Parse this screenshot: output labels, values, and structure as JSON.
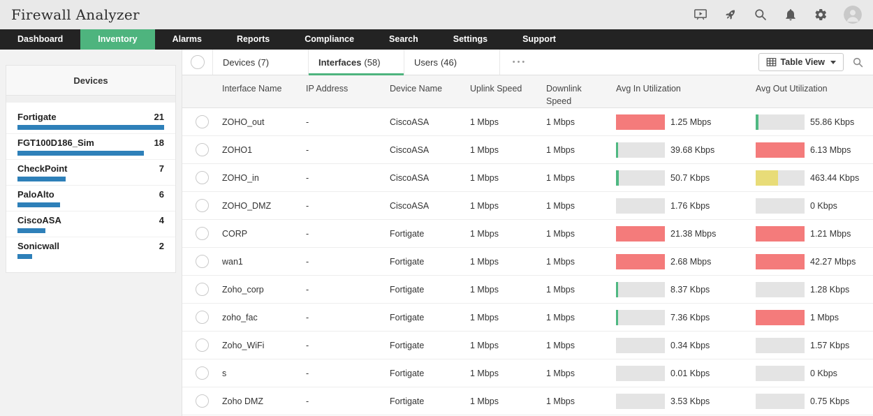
{
  "colors": {
    "accent_green": "#4eb47e",
    "bar_blue": "#2e80b9",
    "util_red": "#f47b7b",
    "util_yellow": "#e8dc78",
    "util_green": "#4fb882",
    "util_track": "#e4e4e4"
  },
  "header": {
    "title": "Firewall Analyzer",
    "icons": [
      "presentation-icon",
      "rocket-icon",
      "search-icon",
      "bell-icon",
      "gear-icon",
      "avatar"
    ]
  },
  "nav": {
    "items": [
      {
        "label": "Dashboard",
        "active": false
      },
      {
        "label": "Inventory",
        "active": true
      },
      {
        "label": "Alarms",
        "active": false
      },
      {
        "label": "Reports",
        "active": false
      },
      {
        "label": "Compliance",
        "active": false
      },
      {
        "label": "Search",
        "active": false
      },
      {
        "label": "Settings",
        "active": false
      },
      {
        "label": "Support",
        "active": false
      }
    ]
  },
  "sidebar": {
    "title": "Devices",
    "items": [
      {
        "name": "Fortigate",
        "count": 21,
        "pct": 100
      },
      {
        "name": "FGT100D186_Sim",
        "count": 18,
        "pct": 86
      },
      {
        "name": "CheckPoint",
        "count": 7,
        "pct": 33
      },
      {
        "name": "PaloAlto",
        "count": 6,
        "pct": 29
      },
      {
        "name": "CiscoASA",
        "count": 4,
        "pct": 19
      },
      {
        "name": "Sonicwall",
        "count": 2,
        "pct": 10
      }
    ]
  },
  "toolbar": {
    "tabs": [
      {
        "label": "Devices",
        "count": "(7)",
        "active": false
      },
      {
        "label": "Interfaces",
        "count": "(58)",
        "active": true
      },
      {
        "label": "Users",
        "count": "(46)",
        "active": false
      }
    ],
    "overflow": "•••",
    "view_button": {
      "label": "Table View"
    }
  },
  "table": {
    "columns": [
      "Interface Name",
      "IP Address",
      "Device Name",
      "Uplink Speed",
      "Downlink Speed",
      "Avg In Utilization",
      "Avg Out Utilization"
    ],
    "rows": [
      {
        "name": "ZOHO_out",
        "ip": "-",
        "device": "CiscoASA",
        "uplink": "1 Mbps",
        "downlink": "1 Mbps",
        "avg_in": {
          "value": "1.25 Mbps",
          "pct": 100,
          "level": "red"
        },
        "avg_out": {
          "value": "55.86 Kbps",
          "pct": 6,
          "level": "green"
        }
      },
      {
        "name": "ZOHO1",
        "ip": "-",
        "device": "CiscoASA",
        "uplink": "1 Mbps",
        "downlink": "1 Mbps",
        "avg_in": {
          "value": "39.68 Kbps",
          "pct": 4,
          "level": "green"
        },
        "avg_out": {
          "value": "6.13 Mbps",
          "pct": 100,
          "level": "red"
        }
      },
      {
        "name": "ZOHO_in",
        "ip": "-",
        "device": "CiscoASA",
        "uplink": "1 Mbps",
        "downlink": "1 Mbps",
        "avg_in": {
          "value": "50.7 Kbps",
          "pct": 5,
          "level": "green"
        },
        "avg_out": {
          "value": "463.44 Kbps",
          "pct": 46,
          "level": "yellow"
        }
      },
      {
        "name": "ZOHO_DMZ",
        "ip": "-",
        "device": "CiscoASA",
        "uplink": "1 Mbps",
        "downlink": "1 Mbps",
        "avg_in": {
          "value": "1.76 Kbps",
          "pct": 0,
          "level": "none"
        },
        "avg_out": {
          "value": "0 Kbps",
          "pct": 0,
          "level": "none"
        }
      },
      {
        "name": "CORP",
        "ip": "-",
        "device": "Fortigate",
        "uplink": "1 Mbps",
        "downlink": "1 Mbps",
        "avg_in": {
          "value": "21.38 Mbps",
          "pct": 100,
          "level": "red"
        },
        "avg_out": {
          "value": "1.21 Mbps",
          "pct": 100,
          "level": "red"
        }
      },
      {
        "name": "wan1",
        "ip": "-",
        "device": "Fortigate",
        "uplink": "1 Mbps",
        "downlink": "1 Mbps",
        "avg_in": {
          "value": "2.68 Mbps",
          "pct": 100,
          "level": "red"
        },
        "avg_out": {
          "value": "42.27 Mbps",
          "pct": 100,
          "level": "red"
        }
      },
      {
        "name": "Zoho_corp",
        "ip": "-",
        "device": "Fortigate",
        "uplink": "1 Mbps",
        "downlink": "1 Mbps",
        "avg_in": {
          "value": "8.37 Kbps",
          "pct": 2,
          "level": "green"
        },
        "avg_out": {
          "value": "1.28 Kbps",
          "pct": 0,
          "level": "none"
        }
      },
      {
        "name": "zoho_fac",
        "ip": "-",
        "device": "Fortigate",
        "uplink": "1 Mbps",
        "downlink": "1 Mbps",
        "avg_in": {
          "value": "7.36 Kbps",
          "pct": 2,
          "level": "green"
        },
        "avg_out": {
          "value": "1 Mbps",
          "pct": 100,
          "level": "red"
        }
      },
      {
        "name": "Zoho_WiFi",
        "ip": "-",
        "device": "Fortigate",
        "uplink": "1 Mbps",
        "downlink": "1 Mbps",
        "avg_in": {
          "value": "0.34 Kbps",
          "pct": 0,
          "level": "none"
        },
        "avg_out": {
          "value": "1.57 Kbps",
          "pct": 0,
          "level": "none"
        }
      },
      {
        "name": "s",
        "ip": "-",
        "device": "Fortigate",
        "uplink": "1 Mbps",
        "downlink": "1 Mbps",
        "avg_in": {
          "value": "0.01 Kbps",
          "pct": 0,
          "level": "none"
        },
        "avg_out": {
          "value": "0 Kbps",
          "pct": 0,
          "level": "none"
        }
      },
      {
        "name": "Zoho DMZ",
        "ip": "-",
        "device": "Fortigate",
        "uplink": "1 Mbps",
        "downlink": "1 Mbps",
        "avg_in": {
          "value": "3.53 Kbps",
          "pct": 0,
          "level": "none"
        },
        "avg_out": {
          "value": "0.75 Kbps",
          "pct": 0,
          "level": "none"
        }
      }
    ]
  }
}
